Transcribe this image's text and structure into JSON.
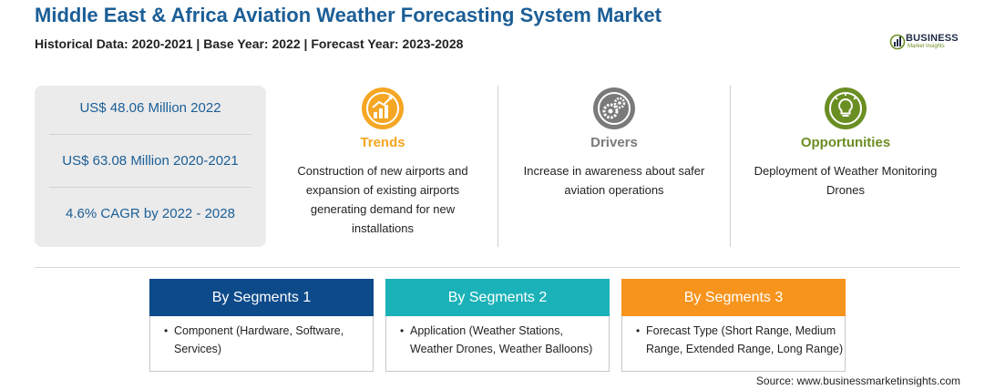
{
  "header": {
    "title": "Middle East & Africa Aviation Weather Forecasting System Market",
    "subtitle": "Historical Data: 2020-2021 | Base Year: 2022 | Forecast Year: 2023-2028"
  },
  "logo": {
    "word": "BUSINESS",
    "tagline": "Market Insights"
  },
  "stats": [
    "US$ 48.06 Million 2022",
    "US$ 63.08 Million 2020-2021",
    "4.6% CAGR by 2022 - 2028"
  ],
  "features": [
    {
      "title": "Trends",
      "color": "#f5a623",
      "icon": "trend-chart-icon",
      "lines": [
        "Construction of new airports and",
        "expansion of existing airports",
        "generating demand for new",
        "installations"
      ]
    },
    {
      "title": "Drivers",
      "color": "#7a7a7a",
      "icon": "gears-icon",
      "lines": [
        "Increase in awareness about safer",
        "aviation operations"
      ]
    },
    {
      "title": "Opportunities",
      "color": "#6b8e23",
      "icon": "lightbulb-icon",
      "lines": [
        "Deployment of Weather Monitoring",
        "Drones"
      ]
    }
  ],
  "segments": [
    {
      "title": "By Segments 1",
      "color": "#0d4a8a",
      "lines": [
        "Component (Hardware, Software,",
        "Services)"
      ]
    },
    {
      "title": "By Segments 2",
      "color": "#1ab2b8",
      "lines": [
        "Application (Weather Stations,",
        "Weather Drones, Weather Balloons)"
      ]
    },
    {
      "title": "By Segments 3",
      "color": "#f7941d",
      "lines": [
        "Forecast Type (Short Range, Medium",
        "Range, Extended Range, Long Range)"
      ]
    }
  ],
  "source": "Source: www.businessmarketinsights.com"
}
